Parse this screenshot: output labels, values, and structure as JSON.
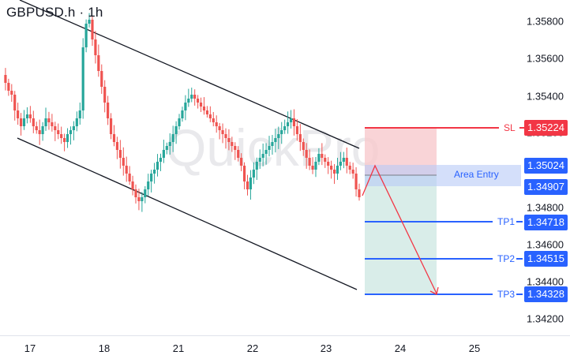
{
  "header": {
    "title": "GBPUSD.h · 1h"
  },
  "watermark": "QuickPro",
  "colors": {
    "bull": "#26a69a",
    "bear": "#ef5350",
    "stop_loss": "#f23645",
    "target": "#2962ff",
    "risk_zone": "#f7c9cd",
    "reward_zone": "#cfe9e3",
    "entry_zone": "#c5d5fb",
    "channel": "#131722"
  },
  "chart_data": {
    "type": "candlestick",
    "title": "GBPUSD.h · 1h",
    "xlabel": "",
    "ylabel": "",
    "x_ticks": [
      "17",
      "18",
      "21",
      "22",
      "23",
      "24",
      "25"
    ],
    "y_ticks": [
      1.358,
      1.356,
      1.354,
      1.352,
      1.35,
      1.348,
      1.346,
      1.344,
      1.342
    ],
    "y_tick_labels": [
      "1.35800",
      "1.35600",
      "1.35400",
      "1.35200",
      "1.35000",
      "1.34800",
      "1.34600",
      "1.34400",
      "1.34200"
    ],
    "ylim": [
      1.3405,
      1.36
    ],
    "levels": [
      {
        "name": "SL",
        "value": 1.35224,
        "label": "1.35224",
        "color": "#f23645"
      },
      {
        "name": "Entry high",
        "value": 1.35024,
        "label": "1.35024",
        "color": "#2962ff"
      },
      {
        "name": "Entry low",
        "value": 1.34907,
        "label": "1.34907",
        "color": "#2962ff"
      },
      {
        "name": "TP1",
        "value": 1.34718,
        "label": "1.34718",
        "color": "#2962ff"
      },
      {
        "name": "TP2",
        "value": 1.34515,
        "label": "1.34515",
        "color": "#2962ff"
      },
      {
        "name": "TP3",
        "value": 1.34328,
        "label": "1.34328",
        "color": "#2962ff"
      }
    ],
    "area_entry_label": "Area Entry",
    "annotations": [
      "Descending channel",
      "Short position projection arrow to TP3"
    ],
    "grid": false
  },
  "axis": {
    "y": [
      "1.35800",
      "1.35600",
      "1.35400",
      "1.35200",
      "1.35000",
      "1.34800",
      "1.34600",
      "1.34400",
      "1.34200"
    ],
    "x": [
      "17",
      "18",
      "21",
      "22",
      "23",
      "24",
      "25"
    ]
  },
  "levels": {
    "sl": {
      "tag": "SL",
      "price": "1.35224"
    },
    "entry_high": {
      "price": "1.35024"
    },
    "entry_low": {
      "price": "1.34907"
    },
    "area_label": "Area Entry",
    "tp1": {
      "tag": "TP1",
      "price": "1.34718"
    },
    "tp2": {
      "tag": "TP2",
      "price": "1.34515"
    },
    "tp3": {
      "tag": "TP3",
      "price": "1.34328"
    }
  }
}
